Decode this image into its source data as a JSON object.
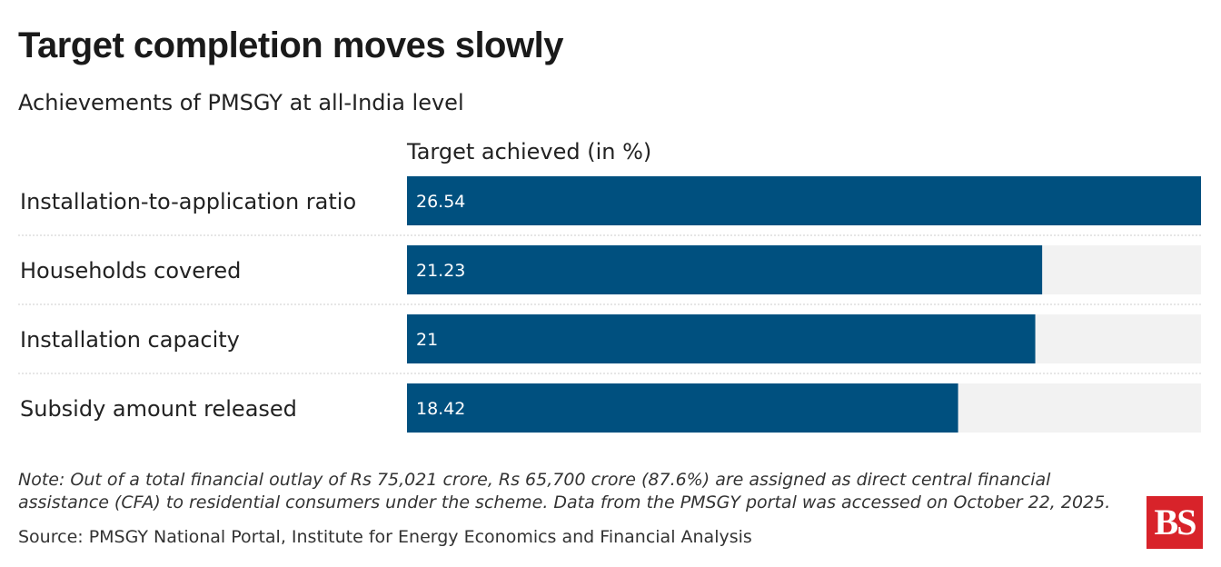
{
  "header": {
    "title": "Target completion moves slowly",
    "subtitle": "Achievements of PMSGY at all-India level"
  },
  "chart_data": {
    "type": "bar",
    "orientation": "horizontal",
    "title": "Target completion moves slowly",
    "subtitle": "Achievements of PMSGY at all-India level",
    "column_header": "Target achieved (in %)",
    "categories": [
      "Installation-to-application ratio",
      "Households covered",
      "Installation capacity",
      "Subsidy amount released"
    ],
    "values": [
      26.54,
      21.23,
      21,
      18.42
    ],
    "value_labels": [
      "26.54",
      "21.23",
      "21",
      "18.42"
    ],
    "xlim": [
      0,
      26.54
    ],
    "bar_color": "#00507f",
    "track_color": "#f2f2f2",
    "divider_color": "#cccccc",
    "label_color": "#ffffff",
    "xlabel": "",
    "ylabel": "",
    "grid": false
  },
  "footer": {
    "note": "Note: Out of a total financial outlay of Rs 75,021 crore, Rs 65,700 crore (87.6%) are assigned as direct central financial assistance (CFA) to residential consumers under the scheme. Data from the PMSGY portal was accessed on October 22, 2025.",
    "source": "Source: PMSGY National Portal, Institute for Energy Economics and Financial Analysis"
  },
  "logo": {
    "text": "BS",
    "color": "#d8232a"
  }
}
